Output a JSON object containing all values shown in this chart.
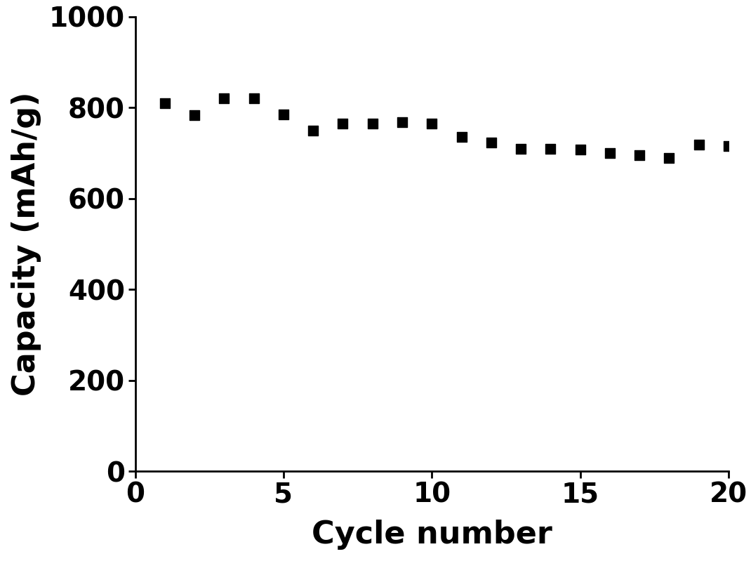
{
  "x": [
    1,
    2,
    3,
    4,
    5,
    6,
    7,
    8,
    9,
    10,
    11,
    12,
    13,
    14,
    15,
    16,
    17,
    18,
    19,
    20
  ],
  "y": [
    810,
    783,
    820,
    820,
    785,
    750,
    765,
    765,
    768,
    765,
    735,
    723,
    710,
    710,
    708,
    700,
    695,
    690,
    718,
    715
  ],
  "xlabel": "Cycle number",
  "ylabel": "Capacity (mAh/g)",
  "xlim": [
    0,
    20
  ],
  "ylim": [
    0,
    1000
  ],
  "xticks": [
    0,
    5,
    10,
    15,
    20
  ],
  "yticks": [
    0,
    200,
    400,
    600,
    800,
    1000
  ],
  "marker": "s",
  "marker_color": "#000000",
  "marker_size": 100,
  "background_color": "#ffffff",
  "axes_linewidth": 2.0,
  "tick_labelsize": 28,
  "xlabel_fontsize": 32,
  "ylabel_fontsize": 32,
  "xlabel_fontweight": "black",
  "ylabel_fontweight": "black",
  "tick_fontweight": "black"
}
